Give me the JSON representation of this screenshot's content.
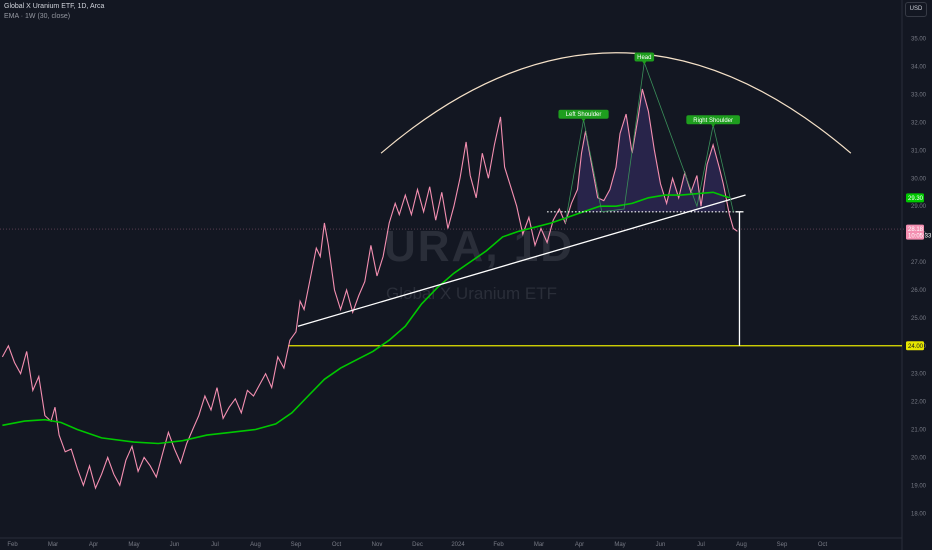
{
  "header": {
    "line1": "Global X Uranium ETF, 1D, Arca",
    "line2": "EMA · 1W (30, close)",
    "currency": "USD"
  },
  "watermark": {
    "symbol": "URA, 1D",
    "name": "Global X Uranium ETF"
  },
  "colors": {
    "background": "#131722",
    "price": "#f48fb1",
    "ema": "#00c800",
    "arc": "#f5e1c8",
    "target": "#e6e600",
    "trend": "#ffffff",
    "label_green": "#1e9e1e"
  },
  "chart_data": {
    "type": "line",
    "x_unit": "month index (Feb 2023 = 0)",
    "x_ticks": [
      {
        "x": 0,
        "label": "Feb"
      },
      {
        "x": 1,
        "label": "Mar"
      },
      {
        "x": 2,
        "label": "Apr"
      },
      {
        "x": 3,
        "label": "May"
      },
      {
        "x": 4,
        "label": "Jun"
      },
      {
        "x": 5,
        "label": "Jul"
      },
      {
        "x": 6,
        "label": "Aug"
      },
      {
        "x": 7,
        "label": "Sep"
      },
      {
        "x": 8,
        "label": "Oct"
      },
      {
        "x": 9,
        "label": "Nov"
      },
      {
        "x": 10,
        "label": "Dec"
      },
      {
        "x": 11,
        "label": "2024"
      },
      {
        "x": 12,
        "label": "Feb"
      },
      {
        "x": 13,
        "label": "Mar"
      },
      {
        "x": 14,
        "label": "Apr"
      },
      {
        "x": 15,
        "label": "May"
      },
      {
        "x": 16,
        "label": "Jun"
      },
      {
        "x": 17,
        "label": "Jul"
      },
      {
        "x": 18,
        "label": "Aug"
      },
      {
        "x": 19,
        "label": "Sep"
      },
      {
        "x": 20,
        "label": "Oct"
      }
    ],
    "y_ticks": [
      "18.00",
      "19.00",
      "20.00",
      "21.00",
      "22.00",
      "23.00",
      "24.00",
      "25.00",
      "26.00",
      "27.00",
      "28.00",
      "29.00",
      "30.00",
      "31.00",
      "32.00",
      "33.00",
      "34.00",
      "35.00"
    ],
    "ylim": [
      17.4,
      35.6
    ],
    "xlim": [
      -0.25,
      21.0
    ],
    "series": [
      {
        "kind": "price",
        "points": [
          [
            -0.25,
            23.6
          ],
          [
            -0.1,
            24.0
          ],
          [
            0.05,
            23.4
          ],
          [
            0.2,
            23.0
          ],
          [
            0.35,
            23.8
          ],
          [
            0.5,
            22.4
          ],
          [
            0.65,
            22.9
          ],
          [
            0.8,
            21.5
          ],
          [
            0.95,
            21.3
          ],
          [
            1.05,
            21.8
          ],
          [
            1.15,
            20.8
          ],
          [
            1.3,
            20.2
          ],
          [
            1.45,
            20.3
          ],
          [
            1.6,
            19.6
          ],
          [
            1.75,
            19.0
          ],
          [
            1.9,
            19.7
          ],
          [
            2.05,
            18.9
          ],
          [
            2.2,
            19.4
          ],
          [
            2.35,
            20.0
          ],
          [
            2.5,
            19.4
          ],
          [
            2.65,
            19.0
          ],
          [
            2.8,
            19.9
          ],
          [
            2.95,
            20.4
          ],
          [
            3.1,
            19.5
          ],
          [
            3.25,
            20.0
          ],
          [
            3.4,
            19.7
          ],
          [
            3.55,
            19.3
          ],
          [
            3.7,
            20.1
          ],
          [
            3.85,
            20.9
          ],
          [
            4.0,
            20.3
          ],
          [
            4.15,
            19.8
          ],
          [
            4.3,
            20.5
          ],
          [
            4.45,
            21.0
          ],
          [
            4.6,
            21.5
          ],
          [
            4.75,
            22.2
          ],
          [
            4.9,
            21.7
          ],
          [
            5.05,
            22.5
          ],
          [
            5.2,
            21.4
          ],
          [
            5.35,
            21.8
          ],
          [
            5.5,
            22.1
          ],
          [
            5.65,
            21.6
          ],
          [
            5.8,
            22.4
          ],
          [
            5.95,
            22.2
          ],
          [
            6.1,
            22.6
          ],
          [
            6.25,
            23.0
          ],
          [
            6.4,
            22.5
          ],
          [
            6.55,
            23.6
          ],
          [
            6.7,
            23.2
          ],
          [
            6.85,
            24.2
          ],
          [
            7.0,
            24.5
          ],
          [
            7.1,
            25.6
          ],
          [
            7.2,
            25.3
          ],
          [
            7.35,
            26.4
          ],
          [
            7.5,
            27.5
          ],
          [
            7.6,
            27.2
          ],
          [
            7.7,
            28.4
          ],
          [
            7.8,
            27.6
          ],
          [
            7.95,
            26.0
          ],
          [
            8.1,
            25.3
          ],
          [
            8.25,
            26.0
          ],
          [
            8.4,
            25.2
          ],
          [
            8.55,
            25.8
          ],
          [
            8.7,
            26.3
          ],
          [
            8.85,
            27.6
          ],
          [
            9.0,
            26.5
          ],
          [
            9.15,
            27.2
          ],
          [
            9.3,
            28.4
          ],
          [
            9.45,
            29.1
          ],
          [
            9.55,
            28.7
          ],
          [
            9.7,
            29.4
          ],
          [
            9.85,
            28.7
          ],
          [
            10.0,
            29.6
          ],
          [
            10.15,
            28.8
          ],
          [
            10.3,
            29.7
          ],
          [
            10.45,
            28.5
          ],
          [
            10.6,
            29.5
          ],
          [
            10.75,
            28.2
          ],
          [
            10.9,
            29.0
          ],
          [
            11.05,
            30.0
          ],
          [
            11.2,
            31.3
          ],
          [
            11.3,
            30.1
          ],
          [
            11.45,
            29.3
          ],
          [
            11.6,
            30.9
          ],
          [
            11.75,
            30.0
          ],
          [
            11.9,
            31.2
          ],
          [
            12.05,
            32.2
          ],
          [
            12.15,
            30.4
          ],
          [
            12.3,
            29.7
          ],
          [
            12.45,
            29.0
          ],
          [
            12.6,
            28.0
          ],
          [
            12.75,
            28.6
          ],
          [
            12.9,
            27.6
          ],
          [
            13.05,
            28.2
          ],
          [
            13.2,
            27.7
          ],
          [
            13.35,
            28.5
          ],
          [
            13.5,
            28.9
          ],
          [
            13.65,
            28.4
          ],
          [
            13.8,
            29.1
          ],
          [
            13.95,
            29.6
          ],
          [
            14.05,
            30.9
          ],
          [
            14.15,
            31.7
          ],
          [
            14.3,
            30.5
          ],
          [
            14.45,
            29.3
          ],
          [
            14.6,
            29.2
          ],
          [
            14.75,
            29.6
          ],
          [
            14.9,
            30.4
          ],
          [
            15.0,
            31.6
          ],
          [
            15.15,
            32.3
          ],
          [
            15.3,
            30.9
          ],
          [
            15.45,
            32.2
          ],
          [
            15.55,
            33.2
          ],
          [
            15.7,
            32.4
          ],
          [
            15.85,
            31.0
          ],
          [
            16.0,
            29.8
          ],
          [
            16.15,
            29.1
          ],
          [
            16.3,
            30.0
          ],
          [
            16.45,
            29.3
          ],
          [
            16.6,
            30.2
          ],
          [
            16.75,
            29.5
          ],
          [
            16.9,
            30.1
          ],
          [
            17.0,
            29.0
          ],
          [
            17.15,
            30.5
          ],
          [
            17.3,
            31.2
          ],
          [
            17.45,
            30.4
          ],
          [
            17.55,
            29.8
          ],
          [
            17.7,
            28.7
          ],
          [
            17.8,
            28.2
          ],
          [
            17.9,
            28.1
          ]
        ]
      },
      {
        "kind": "ema",
        "label": "EMA · 1W (30, close)",
        "points": [
          [
            -0.25,
            21.15
          ],
          [
            0.3,
            21.3
          ],
          [
            0.8,
            21.35
          ],
          [
            1.2,
            21.25
          ],
          [
            1.6,
            21.0
          ],
          [
            2.2,
            20.7
          ],
          [
            3.0,
            20.55
          ],
          [
            3.6,
            20.5
          ],
          [
            4.2,
            20.6
          ],
          [
            4.8,
            20.8
          ],
          [
            5.4,
            20.9
          ],
          [
            6.0,
            21.0
          ],
          [
            6.5,
            21.2
          ],
          [
            6.9,
            21.6
          ],
          [
            7.3,
            22.2
          ],
          [
            7.7,
            22.8
          ],
          [
            8.1,
            23.2
          ],
          [
            8.5,
            23.5
          ],
          [
            8.9,
            23.8
          ],
          [
            9.3,
            24.2
          ],
          [
            9.7,
            24.7
          ],
          [
            10.1,
            25.5
          ],
          [
            10.5,
            26.1
          ],
          [
            10.9,
            26.6
          ],
          [
            11.3,
            27.0
          ],
          [
            11.7,
            27.4
          ],
          [
            12.1,
            27.9
          ],
          [
            12.5,
            28.1
          ],
          [
            12.9,
            28.25
          ],
          [
            13.3,
            28.4
          ],
          [
            13.7,
            28.6
          ],
          [
            14.1,
            28.8
          ],
          [
            14.5,
            29.0
          ],
          [
            14.9,
            29.0
          ],
          [
            15.3,
            29.1
          ],
          [
            15.7,
            29.3
          ],
          [
            16.1,
            29.4
          ],
          [
            16.5,
            29.4
          ],
          [
            16.9,
            29.45
          ],
          [
            17.3,
            29.5
          ],
          [
            17.5,
            29.4
          ],
          [
            17.7,
            29.3
          ]
        ]
      }
    ],
    "annotations": [
      {
        "type": "label",
        "text": "Left Shoulder",
        "x": 14.1,
        "y": 32.1
      },
      {
        "type": "label",
        "text": "Head",
        "x": 15.6,
        "y": 34.15
      },
      {
        "type": "label",
        "text": "Right Shoulder",
        "x": 17.3,
        "y": 31.9
      },
      {
        "type": "trendline",
        "from": [
          7.05,
          24.7
        ],
        "to": [
          18.1,
          29.4
        ]
      },
      {
        "type": "neckline",
        "from": [
          13.2,
          28.8
        ],
        "to": [
          18.0,
          28.8
        ]
      },
      {
        "type": "hline",
        "y": 24.0
      },
      {
        "type": "arrow",
        "x": 17.95,
        "from": 28.8,
        "to": 24.0
      },
      {
        "type": "arc",
        "from": [
          9.1,
          30.9
        ],
        "peak": [
          14.9,
          34.5
        ],
        "to": [
          20.7,
          30.9
        ]
      }
    ],
    "price_badges": [
      {
        "text": "29.30",
        "y": 29.3,
        "color": "#00c800"
      },
      {
        "text": "28.18",
        "sub": "10:05:33",
        "y": 28.18,
        "color": "#f48fb1"
      },
      {
        "text": "24.00",
        "y": 24.0,
        "color": "#e6e600"
      }
    ]
  }
}
